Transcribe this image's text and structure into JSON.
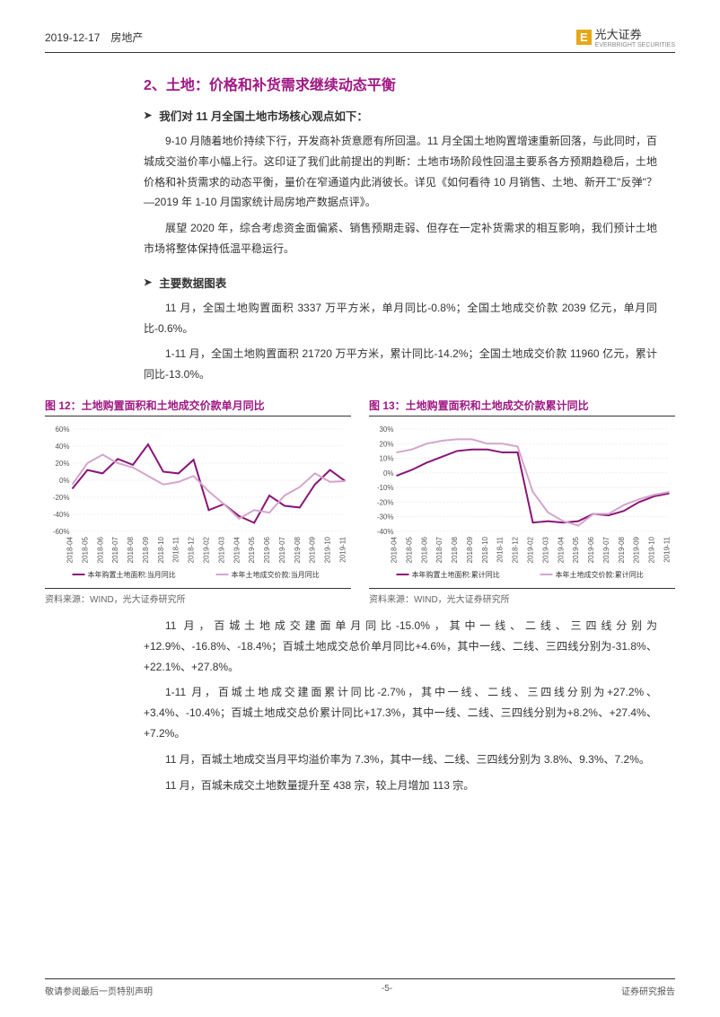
{
  "header": {
    "date_category": "2019-12-17　房地产",
    "logo_letter": "E",
    "logo_main": "光大证券",
    "logo_sub": "EVERBRIGHT SECURITIES"
  },
  "section": {
    "title": "2、土地：价格和补货需求继续动态平衡",
    "bullet1_head": "我们对 11 月全国土地市场核心观点如下：",
    "p1": "9-10 月随着地价持续下行，开发商补货意愿有所回温。11 月全国土地购置增速重新回落，与此同时，百城成交溢价率小幅上行。这印证了我们此前提出的判断：土地市场阶段性回温主要系各方预期趋稳后，土地价格和补货需求的动态平衡，量价在窄通道内此消彼长。详见《如何看待 10 月销售、土地、新开工\"反弹\"？—2019 年 1-10 月国家统计局房地产数据点评》。",
    "p2": "展望 2020 年，综合考虑资金面偏紧、销售预期走弱、但存在一定补货需求的相互影响，我们预计土地市场将整体保持低温平稳运行。",
    "bullet2_head": "主要数据图表",
    "p3": "11 月，全国土地购置面积 3337 万平方米，单月同比-0.8%；全国土地成交价款 2039 亿元，单月同比-0.6%。",
    "p4": "1-11 月，全国土地购置面积 21720 万平方米，累计同比-14.2%；全国土地成交价款 11960 亿元，累计同比-13.0%。",
    "p5": "11 月，百城土地成交建面单月同比-15.0%，其中一线、二线、三四线分别为+12.9%、-16.8%、-18.4%；百城土地成交总价单月同比+4.6%，其中一线、二线、三四线分别为-31.8%、+22.1%、+27.8%。",
    "p6": "1-11 月，百城土地成交建面累计同比-2.7%，其中一线、二线、三四线分别为+27.2%、+3.4%、-10.4%；百城土地成交总价累计同比+17.3%，其中一线、二线、三四线分别为+8.2%、+27.4%、+7.2%。",
    "p7": "11 月，百城土地成交当月平均溢价率为 7.3%，其中一线、二线、三四线分别为 3.8%、9.3%、7.2%。",
    "p8": "11 月，百城未成交土地数量提升至 438 宗，较上月增加 113 宗。"
  },
  "chart12": {
    "title": "图 12：土地购置面积和土地成交价款单月同比",
    "source": "资料来源：WIND，光大证券研究所",
    "type": "line",
    "x_labels": [
      "2018-04",
      "2018-05",
      "2018-06",
      "2018-07",
      "2018-08",
      "2018-09",
      "2018-10",
      "2018-11",
      "2018-12",
      "2019-02",
      "2019-03",
      "2019-04",
      "2019-05",
      "2019-06",
      "2019-07",
      "2019-08",
      "2019-09",
      "2019-10",
      "2019-11"
    ],
    "ylim": [
      -60,
      60
    ],
    "ytick_step": 20,
    "series": [
      {
        "name": "本年购置土地面积:当月同比",
        "color": "#8a1578",
        "width": 2,
        "data": [
          -10,
          12,
          8,
          25,
          18,
          42,
          10,
          8,
          24,
          -35,
          -28,
          -42,
          -50,
          -18,
          -30,
          -32,
          -5,
          12,
          -1
        ]
      },
      {
        "name": "本年土地成交价款:当月同比",
        "color": "#d4a5cc",
        "width": 2,
        "data": [
          -5,
          20,
          30,
          20,
          15,
          5,
          -5,
          -2,
          5,
          -13,
          -28,
          -45,
          -35,
          -38,
          -18,
          -8,
          8,
          -2,
          -1
        ]
      }
    ]
  },
  "chart13": {
    "title": "图 13：土地购置面积和土地成交价款累计同比",
    "source": "资料来源：WIND，光大证券研究所",
    "type": "line",
    "x_labels": [
      "2018-04",
      "2018-05",
      "2018-06",
      "2018-07",
      "2018-08",
      "2018-09",
      "2018-10",
      "2018-11",
      "2018-12",
      "2019-02",
      "2019-03",
      "2019-04",
      "2019-05",
      "2019-06",
      "2019-07",
      "2019-08",
      "2019-09",
      "2019-10",
      "2019-11"
    ],
    "ylim": [
      -40,
      30
    ],
    "ytick_step": 10,
    "series": [
      {
        "name": "本年购置土地面积:累计同比",
        "color": "#8a1578",
        "width": 2,
        "data": [
          -2,
          2,
          7,
          11,
          15,
          16,
          16,
          14,
          14,
          -34,
          -33,
          -34,
          -33,
          -28,
          -29,
          -26,
          -20,
          -16,
          -14
        ]
      },
      {
        "name": "本年土地成交价款:累计同比",
        "color": "#d4a5cc",
        "width": 2,
        "data": [
          14,
          16,
          20,
          22,
          23,
          23,
          20,
          20,
          18,
          -13,
          -27,
          -33,
          -36,
          -28,
          -28,
          -22,
          -18,
          -15,
          -13
        ]
      }
    ]
  },
  "footer": {
    "left": "敬请参阅最后一页特别声明",
    "center": "-5-",
    "right": "证券研究报告"
  },
  "colors": {
    "accent": "#a01784",
    "dark_purple": "#8a1578",
    "light_purple": "#d4a5cc",
    "grid": "#dddddd",
    "text": "#333333"
  }
}
